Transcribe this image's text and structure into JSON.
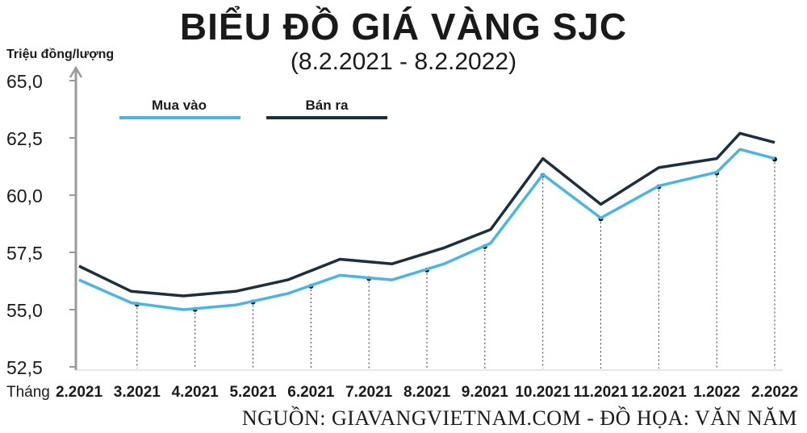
{
  "title": "BIỂU ĐỒ GIÁ VÀNG SJC",
  "subtitle": "(8.2.2021 - 8.2.2022)",
  "source": "NGUỒN: GIAVANGVIETNAM.COM - ĐỒ HỌA: VĂN NĂM",
  "colors": {
    "buy": "#46b6e8",
    "sell": "#1b2f3d",
    "axis": "#9a9a9a",
    "text": "#1a1a1a"
  },
  "chart_data": {
    "type": "line",
    "ylabel": "Triệu đồng/lượng",
    "xlabel": "Tháng",
    "ylim": [
      52.5,
      65.0
    ],
    "yticks": [
      "65,0",
      "62,5",
      "60,0",
      "57,5",
      "55,0",
      "52,5"
    ],
    "ytick_values": [
      65.0,
      62.5,
      60.0,
      57.5,
      55.0,
      52.5
    ],
    "categories": [
      "2.2021",
      "3.2021",
      "4.2021",
      "5.2021",
      "6.2021",
      "7.2021",
      "8.2021",
      "9.2021",
      "10.2021",
      "11.2021",
      "12.2021",
      "1.2022",
      "2.2022"
    ],
    "x": [
      0,
      0.9,
      1.8,
      2.7,
      3.6,
      4.5,
      5.4,
      6.3,
      7.1,
      8.0,
      9.0,
      10.0,
      11.0,
      11.4,
      12.0
    ],
    "series": [
      {
        "name": "Mua vào",
        "values": [
          56.3,
          55.3,
          55.0,
          55.2,
          55.7,
          56.5,
          56.3,
          57.0,
          57.9,
          60.9,
          59.0,
          60.4,
          61.0,
          62.0,
          61.6
        ]
      },
      {
        "name": "Bán ra",
        "values": [
          56.9,
          55.8,
          55.6,
          55.8,
          56.3,
          57.2,
          57.0,
          57.7,
          58.5,
          61.6,
          59.6,
          61.2,
          61.6,
          62.7,
          62.3
        ]
      }
    ],
    "legend": [
      "Mua vào",
      "Bán ra"
    ],
    "legend_position": "top-left",
    "grid": false
  }
}
